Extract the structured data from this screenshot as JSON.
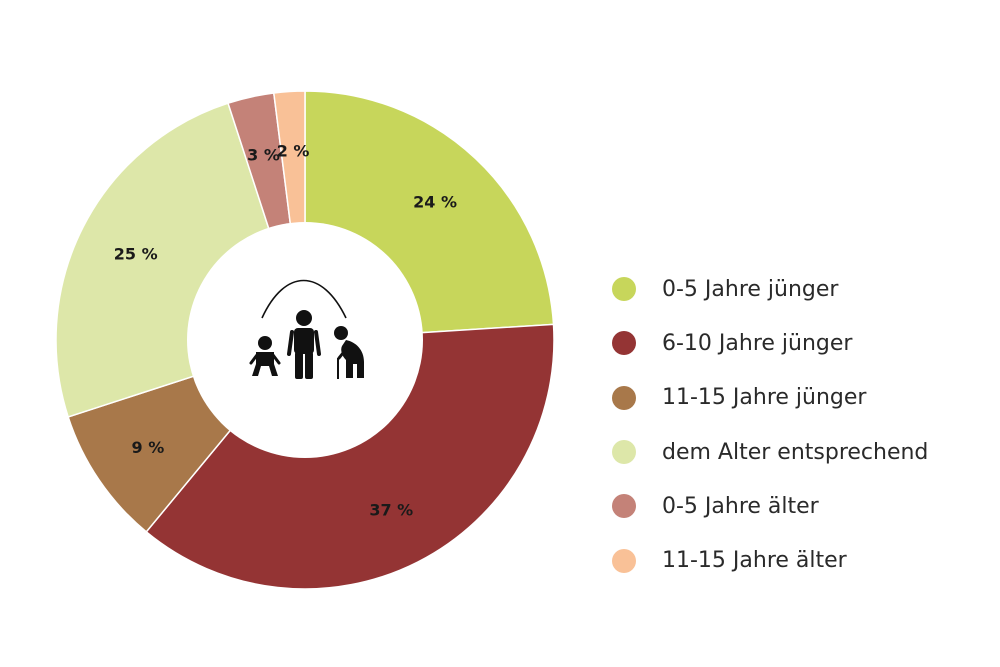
{
  "chart_data": {
    "type": "pie",
    "donut": true,
    "legend_position": "right",
    "categories": [
      "0-5 Jahre jünger",
      "6-10 Jahre jünger",
      "11-15 Jahre jünger",
      "dem Alter entsprechend",
      "0-5 Jahre älter",
      "11-15 Jahre älter"
    ],
    "values": [
      24,
      37,
      9,
      25,
      3,
      2
    ],
    "data_labels": [
      "24 %",
      "37 %",
      "9 %",
      "25 %",
      "3 %",
      "2 %"
    ],
    "colors": [
      "#c7d65b",
      "#943434",
      "#a8784a",
      "#dde7a9",
      "#c48278",
      "#f9c197"
    ]
  },
  "center_icon": "family-ages-icon"
}
